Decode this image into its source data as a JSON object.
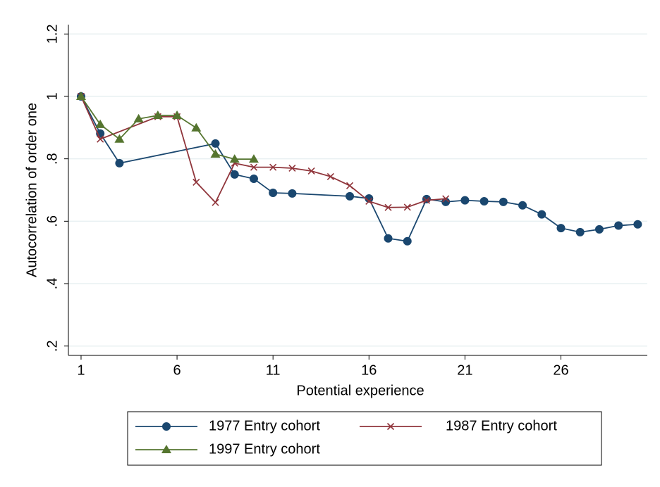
{
  "chart_data": {
    "type": "line",
    "x_label": "Potential experience",
    "y_label": "Autocorrelation of order one",
    "xlim": [
      0.34,
      30.5
    ],
    "xticks": [
      1,
      6,
      11,
      16,
      21,
      26
    ],
    "ylim": [
      0.17,
      1.23
    ],
    "yticks": [
      {
        "value": 0.2,
        "label": ".2"
      },
      {
        "value": 0.4,
        "label": ".4"
      },
      {
        "value": 0.6,
        "label": ".6"
      },
      {
        "value": 0.8,
        "label": ".8"
      },
      1,
      1.2
    ],
    "grid": true,
    "legend": "bottom",
    "series": [
      {
        "name": "1977 Entry cohort",
        "color": "#1a476f",
        "marker": "circle",
        "x": [
          1,
          2,
          3,
          8,
          9,
          10,
          11,
          12,
          15,
          16,
          17,
          18,
          19,
          20,
          21,
          22,
          23,
          24,
          25,
          26,
          27,
          28,
          29,
          30
        ],
        "values": [
          1.0,
          0.881,
          0.786,
          0.849,
          0.75,
          0.736,
          0.691,
          0.689,
          0.68,
          0.673,
          0.545,
          0.536,
          0.671,
          0.662,
          0.667,
          0.664,
          0.662,
          0.651,
          0.622,
          0.578,
          0.565,
          0.574,
          0.586,
          0.59
        ]
      },
      {
        "name": "1987 Entry cohort",
        "color": "#90353b",
        "marker": "x",
        "x": [
          1,
          2,
          5,
          6,
          7,
          8,
          9,
          10,
          11,
          12,
          13,
          14,
          15,
          16,
          17,
          18,
          19,
          20
        ],
        "values": [
          1.0,
          0.863,
          0.935,
          0.935,
          0.725,
          0.66,
          0.786,
          0.773,
          0.773,
          0.77,
          0.761,
          0.743,
          0.714,
          0.664,
          0.644,
          0.645,
          0.667,
          0.672
        ]
      },
      {
        "name": "1997 Entry cohort",
        "color": "#55752f",
        "marker": "triangle",
        "x": [
          1,
          2,
          3,
          4,
          5,
          6,
          7,
          8,
          9,
          10
        ],
        "values": [
          1.0,
          0.91,
          0.863,
          0.928,
          0.939,
          0.939,
          0.899,
          0.815,
          0.799,
          0.799
        ]
      }
    ]
  }
}
